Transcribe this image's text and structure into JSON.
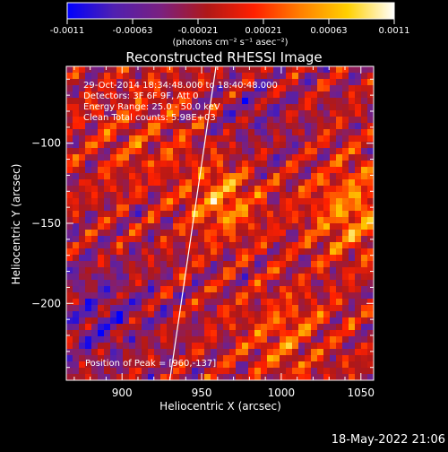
{
  "chart_data": {
    "type": "heatmap",
    "title": "Reconstructed RHESSI Image",
    "xlabel": "Heliocentric X (arcsec)",
    "ylabel": "Heliocentric Y (arcsec)",
    "xlim": [
      865,
      1058
    ],
    "ylim": [
      -248,
      -52
    ],
    "xticks": [
      900,
      950,
      1000,
      1050
    ],
    "yticks": [
      -100,
      -150,
      -200
    ],
    "colorbar": {
      "label": "(photons cm⁻² s⁻¹ asec⁻²)",
      "vmin": -0.0011,
      "vmax": 0.0011,
      "ticks": [
        "-0.0011",
        "-0.00063",
        "-0.00021",
        "0.00021",
        "0.00063",
        "0.0011"
      ],
      "colors": [
        "#0000ff",
        "#5020b0",
        "#7a2080",
        "#b01818",
        "#ff2000",
        "#ff8000",
        "#ffd000",
        "#ffffff"
      ]
    },
    "info_lines": [
      "29-Oct-2014 18:34:48.000 to 18:40:48.000",
      "Detectors: 3F 6F 9F, Att 0",
      "Energy Range: 25.0 - 50.0 keV",
      "Clean     Total counts: 5.98E+03"
    ],
    "peak_label": "Position of Peak = [960,-137]",
    "peak": [
      960,
      -137
    ],
    "limb_line": [
      [
        930,
        -248
      ],
      [
        959,
        -52
      ]
    ],
    "grid": false
  },
  "timestamp": "18-May-2022 21:06"
}
